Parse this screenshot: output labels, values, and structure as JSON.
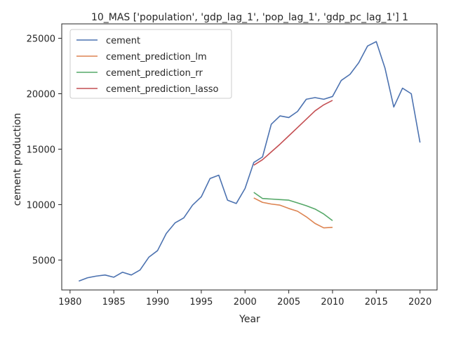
{
  "chart_data": {
    "type": "line",
    "title": "10_MAS ['population', 'gdp_lag_1', 'pop_lag_1', 'gdp_pc_lag_1'] 1",
    "xlabel": "Year",
    "ylabel": "cement production",
    "xlim": [
      1979.05,
      2021.95
    ],
    "ylim": [
      2300,
      26300
    ],
    "xticks": [
      1980,
      1985,
      1990,
      1995,
      2000,
      2005,
      2010,
      2015,
      2020
    ],
    "yticks": [
      5000,
      10000,
      15000,
      20000,
      25000
    ],
    "grid": false,
    "legend_position": "top-left",
    "series": [
      {
        "name": "cement",
        "color": "#4c72b0",
        "x": [
          1981,
          1982,
          1983,
          1984,
          1985,
          1986,
          1987,
          1988,
          1989,
          1990,
          1991,
          1992,
          1993,
          1994,
          1995,
          1996,
          1997,
          1998,
          1999,
          2000,
          2001,
          2002,
          2003,
          2004,
          2005,
          2006,
          2007,
          2008,
          2009,
          2010,
          2011,
          2012,
          2013,
          2014,
          2015,
          2016,
          2017,
          2018,
          2019,
          2020
        ],
        "y": [
          3100,
          3400,
          3550,
          3650,
          3450,
          3900,
          3650,
          4100,
          5250,
          5850,
          7400,
          8350,
          8800,
          9950,
          10700,
          12350,
          12650,
          10400,
          10100,
          11450,
          13800,
          14300,
          17250,
          18000,
          17850,
          18400,
          19500,
          19650,
          19500,
          19750,
          21200,
          21750,
          22800,
          24300,
          24700,
          22300,
          18800,
          20500,
          20000,
          15600
        ]
      },
      {
        "name": "cement_prediction_lm",
        "color": "#dd8452",
        "x": [
          2001,
          2002,
          2003,
          2004,
          2005,
          2006,
          2007,
          2008,
          2009,
          2010
        ],
        "y": [
          10600,
          10200,
          10050,
          9950,
          9650,
          9400,
          8900,
          8300,
          7900,
          7950
        ]
      },
      {
        "name": "cement_prediction_rr",
        "color": "#55a868",
        "x": [
          2001,
          2002,
          2003,
          2004,
          2005,
          2006,
          2007,
          2008,
          2009,
          2010
        ],
        "y": [
          11100,
          10550,
          10500,
          10450,
          10400,
          10150,
          9900,
          9600,
          9150,
          8550
        ]
      },
      {
        "name": "cement_prediction_lasso",
        "color": "#c44e52",
        "x": [
          2001,
          2002,
          2003,
          2004,
          2005,
          2006,
          2007,
          2008,
          2009,
          2010
        ],
        "y": [
          13550,
          14050,
          14750,
          15450,
          16200,
          16950,
          17700,
          18450,
          19000,
          19400
        ]
      }
    ]
  }
}
